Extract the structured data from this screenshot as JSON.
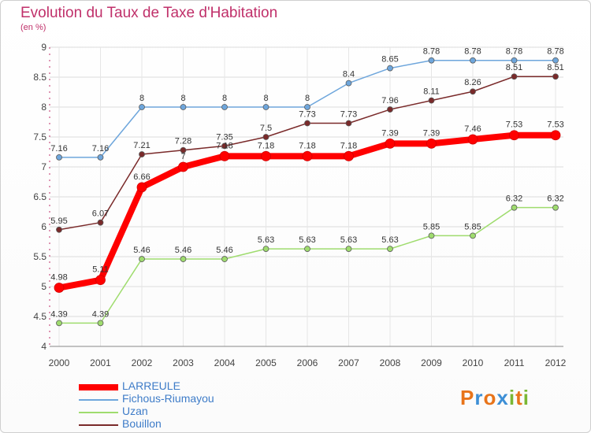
{
  "header": {
    "title": "Evolution du Taux de Taxe d'Habitation",
    "unit": "(en %)"
  },
  "logo": {
    "text": "Proxiti",
    "letters": [
      "P",
      "r",
      "o",
      "x",
      "i",
      "t",
      "i"
    ],
    "colors": [
      "#e8741a",
      "#3d8fd6",
      "#e8741a",
      "#3d8fd6",
      "#7ab734",
      "#e8741a",
      "#7ab734"
    ]
  },
  "chart_data": {
    "type": "line",
    "x": [
      "2000",
      "2001",
      "2002",
      "2003",
      "2004",
      "2005",
      "2006",
      "2007",
      "2008",
      "2009",
      "2010",
      "2011",
      "2012"
    ],
    "ylim": [
      4,
      9
    ],
    "yticks": [
      "4",
      "4.5",
      "5",
      "5.5",
      "6",
      "6.5",
      "7",
      "7.5",
      "8",
      "8.5",
      "9"
    ],
    "grid": true,
    "legend": "bottom-left",
    "series": [
      {
        "name": "LARREULE",
        "color": "#ff0000",
        "width": 8,
        "values": [
          4.98,
          5.11,
          6.66,
          7,
          7.18,
          7.18,
          7.18,
          7.18,
          7.39,
          7.39,
          7.46,
          7.53,
          7.53
        ],
        "labels": [
          "4.98",
          "5.11",
          "6.66",
          "7",
          "7.18",
          "7.18",
          "7.18",
          "7.18",
          "7.39",
          "7.39",
          "7.46",
          "7.53",
          "7.53"
        ]
      },
      {
        "name": "Fichous-Riumayou",
        "color": "#6ea6dc",
        "width": 1.5,
        "values": [
          7.16,
          7.16,
          8,
          8,
          8,
          8,
          8,
          8.4,
          8.65,
          8.78,
          8.78,
          8.78,
          8.78
        ],
        "labels": [
          "7.16",
          "7.16",
          "8",
          "8",
          "8",
          "8",
          "8",
          "8.4",
          "8.65",
          "8.78",
          "8.78",
          "8.78",
          "8.78"
        ]
      },
      {
        "name": "Uzan",
        "color": "#9fdc6e",
        "width": 1.5,
        "values": [
          4.39,
          4.39,
          5.46,
          5.46,
          5.46,
          5.63,
          5.63,
          5.63,
          5.63,
          5.85,
          5.85,
          6.32,
          6.32
        ],
        "labels": [
          "4.39",
          "4.39",
          "5.46",
          "5.46",
          "5.46",
          "5.63",
          "5.63",
          "5.63",
          "5.63",
          "5.85",
          "5.85",
          "6.32",
          "6.32"
        ]
      },
      {
        "name": "Bouillon",
        "color": "#7a2a2a",
        "width": 1.5,
        "values": [
          5.95,
          6.07,
          7.21,
          7.28,
          7.35,
          7.5,
          7.73,
          7.73,
          7.96,
          8.11,
          8.26,
          8.51,
          8.51
        ],
        "labels": [
          "5.95",
          "6.07",
          "7.21",
          "7.28",
          "7.35",
          "7.5",
          "7.73",
          "7.73",
          "7.96",
          "8.11",
          "8.26",
          "8.51",
          "8.51"
        ]
      }
    ]
  }
}
